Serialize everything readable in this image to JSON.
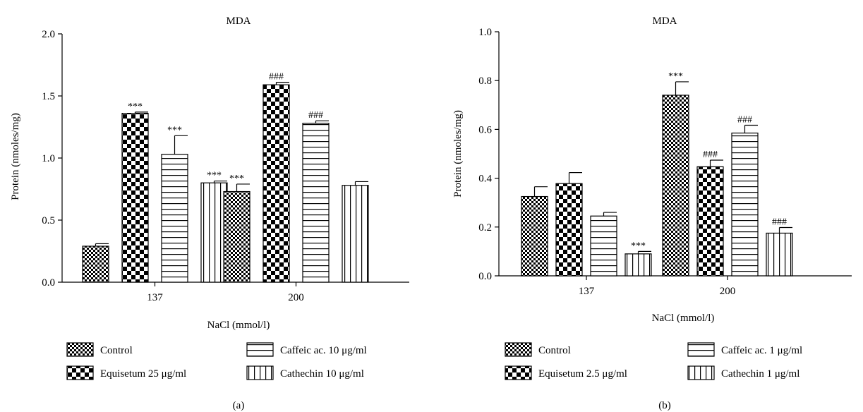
{
  "panels": [
    {
      "panel_label": "(a)",
      "legend": [
        {
          "label": "Control",
          "pattern": "fine-check"
        },
        {
          "label": "Caffeic ac. 10 μg/ml",
          "pattern": "hlines"
        },
        {
          "label": "Equisetum 25 μg/ml",
          "pattern": "coarse-check"
        },
        {
          "label": "Cathechin 10 μg/ml",
          "pattern": "vlines"
        }
      ]
    },
    {
      "panel_label": "(b)",
      "legend": [
        {
          "label": "Control",
          "pattern": "fine-check"
        },
        {
          "label": "Caffeic ac. 1 μg/ml",
          "pattern": "hlines"
        },
        {
          "label": "Equisetum 2.5 μg/ml",
          "pattern": "coarse-check"
        },
        {
          "label": "Cathechin 1 μg/ml",
          "pattern": "vlines"
        }
      ]
    }
  ],
  "chart_data": [
    {
      "type": "bar",
      "title": "MDA",
      "xlabel": "NaCl (mmol/l)",
      "ylabel": "Protein (nmoles/mg)",
      "categories": [
        "137",
        "200"
      ],
      "ylim": [
        0,
        2.0
      ],
      "yticks": [
        "0.0",
        "0.5",
        "1.0",
        "1.5",
        "2.0"
      ],
      "series": [
        {
          "name": "Control",
          "pattern": "fine-check",
          "values": [
            0.29,
            0.73
          ],
          "errors": [
            0.02,
            0.06
          ],
          "annotations": [
            "",
            "***"
          ]
        },
        {
          "name": "Equisetum 25 μg/ml",
          "pattern": "coarse-check",
          "values": [
            1.36,
            1.59
          ],
          "errors": [
            0.01,
            0.02
          ],
          "annotations": [
            "***",
            "###"
          ]
        },
        {
          "name": "Caffeic ac. 10 μg/ml",
          "pattern": "hlines",
          "values": [
            1.03,
            1.28
          ],
          "errors": [
            0.15,
            0.02
          ],
          "annotations": [
            "***",
            "###"
          ]
        },
        {
          "name": "Cathechin 10 μg/ml",
          "pattern": "vlines",
          "values": [
            0.8,
            0.78
          ],
          "errors": [
            0.015,
            0.03
          ],
          "annotations": [
            "***",
            ""
          ]
        }
      ]
    },
    {
      "type": "bar",
      "title": "MDA",
      "xlabel": "NaCl (mmol/l)",
      "ylabel": "Protein (nmoles/mg)",
      "categories": [
        "137",
        "200"
      ],
      "ylim": [
        0,
        1.0
      ],
      "yticks": [
        "0.0",
        "0.2",
        "0.4",
        "0.6",
        "0.8",
        "1.0"
      ],
      "series": [
        {
          "name": "Control",
          "pattern": "fine-check",
          "values": [
            0.325,
            0.74
          ],
          "errors": [
            0.04,
            0.055
          ],
          "annotations": [
            "",
            "***"
          ]
        },
        {
          "name": "Equisetum 2.5 μg/ml",
          "pattern": "coarse-check",
          "values": [
            0.378,
            0.447
          ],
          "errors": [
            0.045,
            0.027
          ],
          "annotations": [
            "",
            "###"
          ]
        },
        {
          "name": "Caffeic ac. 1 μg/ml",
          "pattern": "hlines",
          "values": [
            0.245,
            0.585
          ],
          "errors": [
            0.015,
            0.032
          ],
          "annotations": [
            "",
            "###"
          ]
        },
        {
          "name": "Cathechin 1 μg/ml",
          "pattern": "vlines",
          "values": [
            0.09,
            0.175
          ],
          "errors": [
            0.01,
            0.023
          ],
          "annotations": [
            "***",
            "###"
          ]
        }
      ]
    }
  ]
}
